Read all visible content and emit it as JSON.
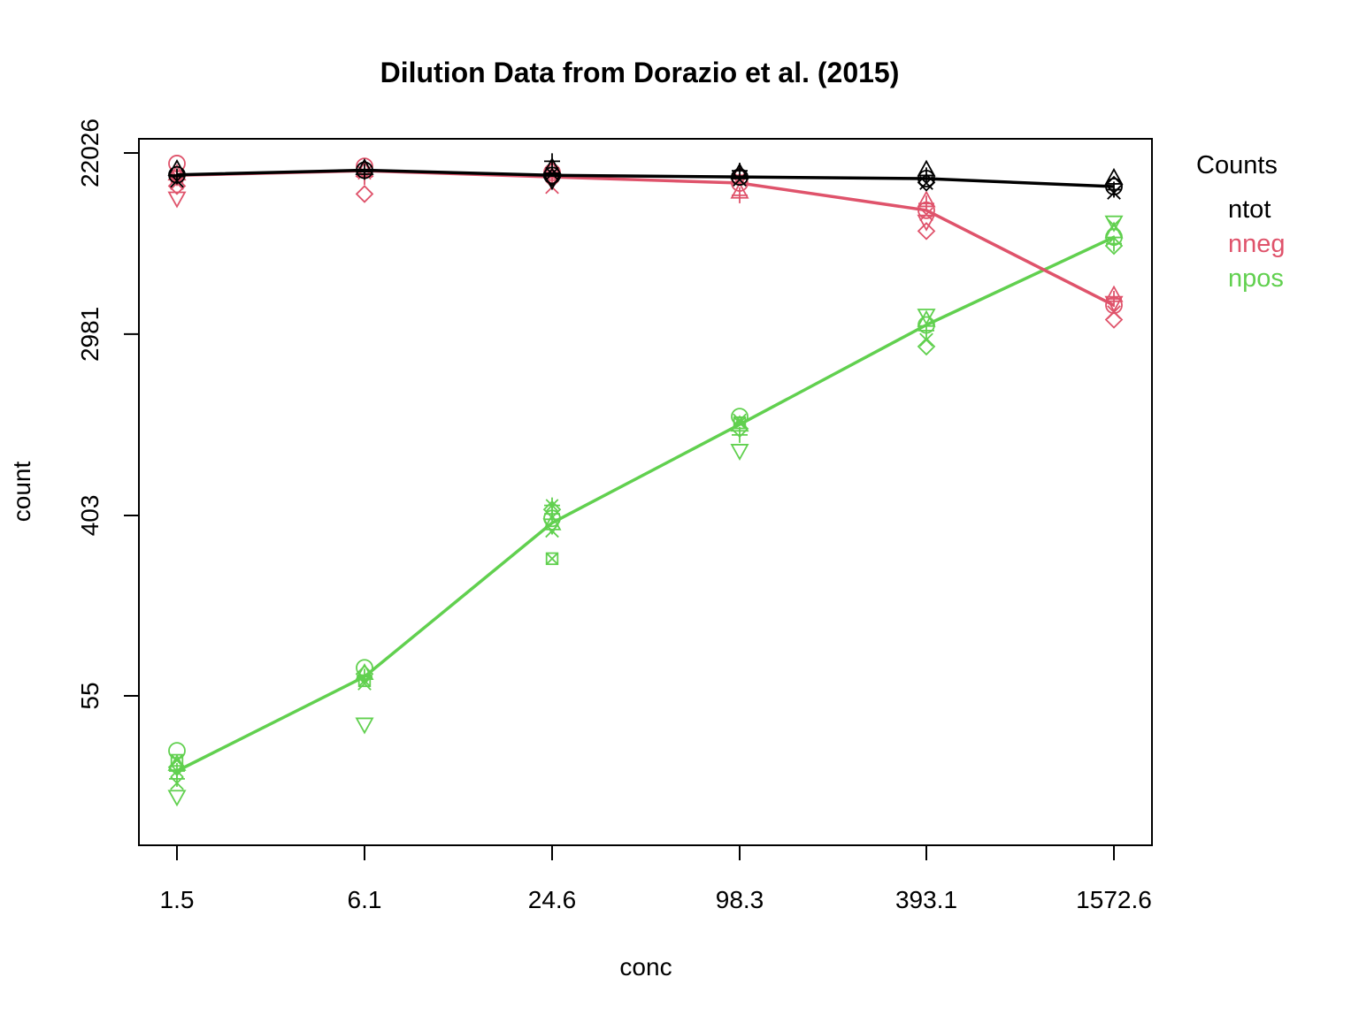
{
  "chart_data": {
    "type": "line",
    "title": "Dilution Data from Dorazio et al. (2015)",
    "xlabel": "conc",
    "ylabel": "count",
    "x_scale": "log",
    "y_scale": "log",
    "x_ticks": [
      1.5,
      6.1,
      24.6,
      98.3,
      393.1,
      1572.6
    ],
    "x_tick_labels": [
      "1.5",
      "6.1",
      "24.6",
      "98.3",
      "393.1",
      "1572.6"
    ],
    "y_ticks": [
      55,
      403,
      2981,
      22026
    ],
    "y_tick_labels": [
      "55",
      "403",
      "2981",
      "22026"
    ],
    "xlim": [
      1.3,
      1800
    ],
    "ylim": [
      10,
      26000
    ],
    "grid": false,
    "legend": {
      "title": "Counts",
      "position": "outside-right",
      "entries": [
        "ntot",
        "nneg",
        "npos"
      ]
    },
    "series": [
      {
        "name": "ntot",
        "color": "#000000",
        "line": [
          17300,
          18200,
          17200,
          16900,
          16600,
          15200
        ],
        "points": [
          [
            17300,
            18500,
            17000,
            16200
          ],
          [
            18200,
            18700,
            17900
          ],
          [
            17200,
            18900,
            20100,
            17500,
            16800,
            16200
          ],
          [
            16900,
            17800,
            18100,
            16400
          ],
          [
            16600,
            18400,
            17200,
            15800,
            15900
          ],
          [
            15200,
            16800,
            14700,
            14200,
            15500
          ]
        ]
      },
      {
        "name": "nneg",
        "color": "#DF536B",
        "line": [
          17200,
          18100,
          16900,
          15800,
          11700,
          4100
        ],
        "points": [
          [
            19600,
            17600,
            16700,
            15800,
            15300,
            13300,
            17000
          ],
          [
            19000,
            18300,
            16900,
            17700,
            14000
          ],
          [
            17800,
            18400,
            16900,
            15100,
            17000
          ],
          [
            15800,
            14400,
            13800,
            16600,
            17100
          ],
          [
            11700,
            13100,
            12600,
            11200,
            9300,
            10300
          ],
          [
            4100,
            4600,
            4400,
            3800,
            3500,
            4200
          ]
        ]
      },
      {
        "name": "npos",
        "color": "#61D04F",
        "line": [
          24,
          68,
          371,
          1100,
          3300,
          8700
        ],
        "points": [
          [
            30,
            26,
            22,
            21,
            25,
            18,
            27,
            24
          ],
          [
            75,
            71,
            68,
            63,
            70,
            40,
            65
          ],
          [
            390,
            370,
            410,
            340,
            430,
            360,
            250,
            450
          ],
          [
            1200,
            1100,
            980,
            1150,
            1050,
            820,
            1120
          ],
          [
            3300,
            3500,
            3100,
            2800,
            2600,
            3650
          ],
          [
            8700,
            9300,
            8100,
            9900,
            7900,
            10200
          ]
        ]
      }
    ]
  }
}
